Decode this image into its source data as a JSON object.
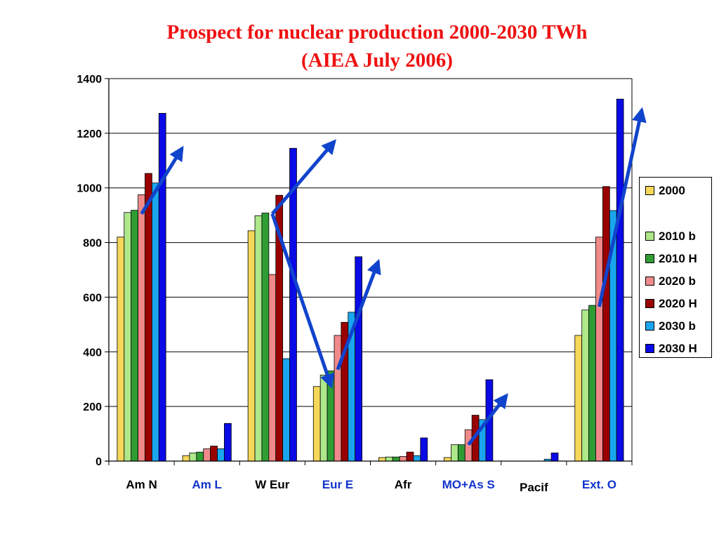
{
  "chart_data": {
    "type": "bar",
    "title": "Prospect for nuclear production  2000-2030 TWh",
    "subtitle": "(AIEA July 2006)",
    "xlabel": "",
    "ylabel": "",
    "ylim": [
      0,
      1400
    ],
    "yticks": [
      "0",
      "200",
      "400",
      "600",
      "800",
      "1000",
      "1200",
      "1400"
    ],
    "grid": true,
    "legend_position": "right",
    "categories": [
      "Am N",
      "Am L",
      "W Eur",
      "Eur E",
      "Afr",
      "MO+As S",
      "Pacif",
      "Ext. O"
    ],
    "category_colors": [
      "#000000",
      "#1133cc",
      "#000000",
      "#1133cc",
      "#000000",
      "#1133cc",
      "#000000",
      "#1133cc"
    ],
    "series": [
      {
        "name": "2000",
        "color": "#f5d75a",
        "values": [
          820,
          20,
          843,
          273,
          13,
          13,
          0,
          460
        ]
      },
      {
        "name": "2010 b",
        "color": "#aee88a",
        "values": [
          910,
          30,
          898,
          315,
          15,
          60,
          0,
          553
        ]
      },
      {
        "name": "2010 H",
        "color": "#2f9c34",
        "values": [
          918,
          33,
          908,
          330,
          15,
          60,
          0,
          570
        ]
      },
      {
        "name": "2020 b",
        "color": "#f08a8a",
        "values": [
          975,
          45,
          683,
          460,
          17,
          115,
          0,
          820
        ]
      },
      {
        "name": "2020 H",
        "color": "#990000",
        "values": [
          1053,
          55,
          973,
          508,
          33,
          168,
          0,
          1005
        ]
      },
      {
        "name": "2030 b",
        "color": "#1aa6ee",
        "values": [
          1018,
          45,
          375,
          545,
          20,
          152,
          7,
          917
        ]
      },
      {
        "name": "2030 H",
        "color": "#0a0ae6",
        "values": [
          1273,
          138,
          1145,
          748,
          85,
          298,
          30,
          1325
        ]
      }
    ],
    "arrow_color": "#1144cc",
    "annotations": [
      {
        "from": [
          0,
          905
        ],
        "to": [
          0.62,
          1145
        ]
      },
      {
        "from": [
          2,
          905
        ],
        "to": [
          2.95,
          1170
        ]
      },
      {
        "from": [
          2,
          905
        ],
        "to": [
          2.9,
          275
        ]
      },
      {
        "from": [
          3,
          335
        ],
        "to": [
          3.62,
          730
        ]
      },
      {
        "from": [
          5,
          60
        ],
        "to": [
          5.58,
          240
        ]
      },
      {
        "from": [
          7,
          565
        ],
        "to": [
          7.65,
          1285
        ]
      }
    ]
  }
}
